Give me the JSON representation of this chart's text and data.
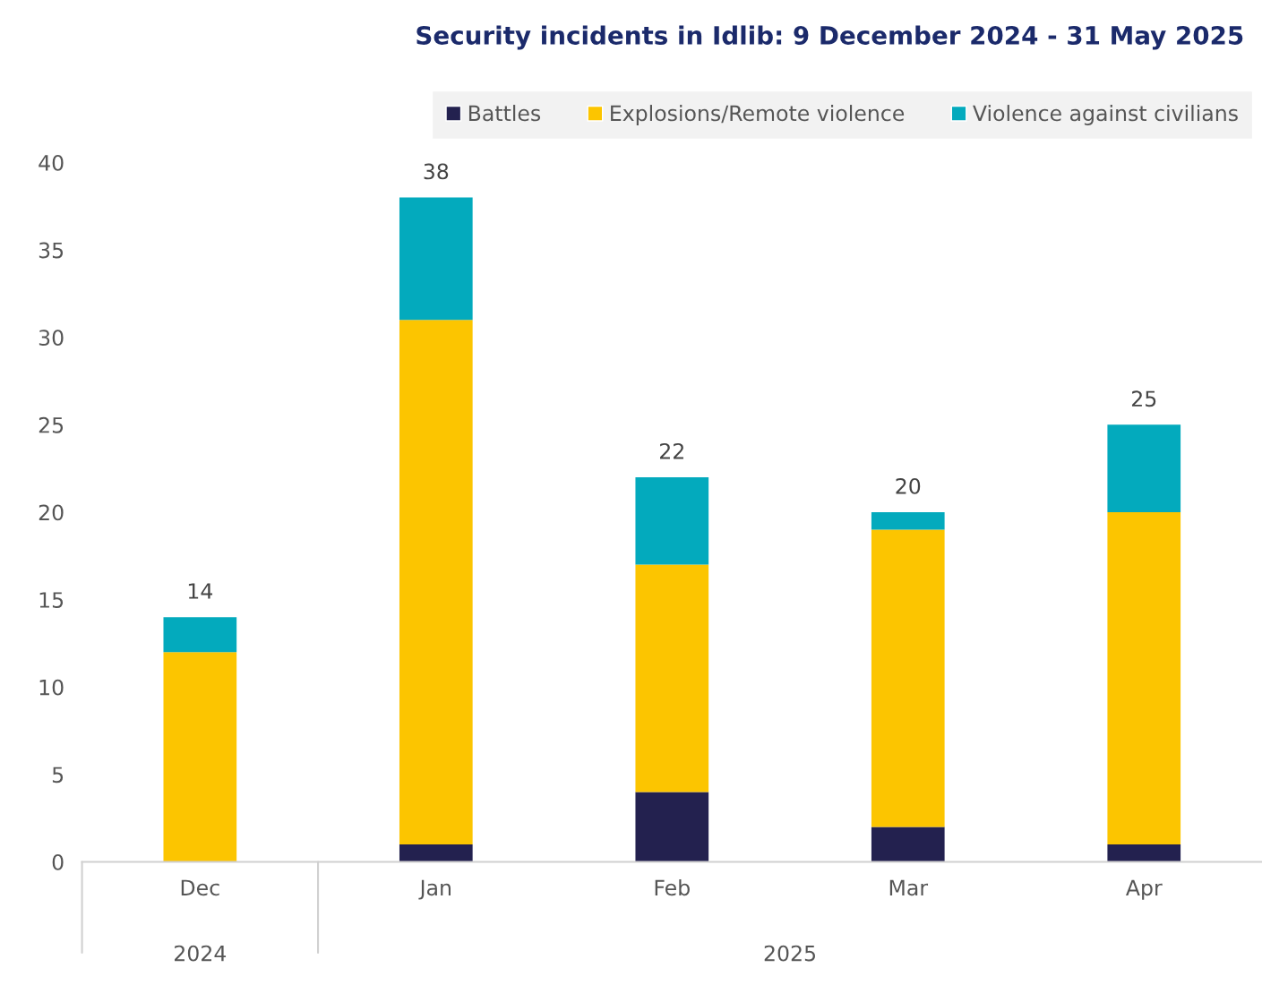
{
  "chart_data": {
    "type": "bar",
    "title": "Security incidents in Idlib: 9 December 2024 - 31 May 2025",
    "categories": [
      "Dec",
      "Jan",
      "Feb",
      "Mar",
      "Apr"
    ],
    "stacked": true,
    "series": [
      {
        "name": "Battles",
        "color": "#23214f",
        "values": [
          0,
          1,
          4,
          2,
          1
        ]
      },
      {
        "name": "Explosions/Remote violence",
        "color": "#fcc500",
        "values": [
          12,
          30,
          13,
          17,
          19
        ]
      },
      {
        "name": "Violence against civilians",
        "color": "#03aabd",
        "values": [
          2,
          7,
          5,
          1,
          5
        ]
      }
    ],
    "totals": [
      "14",
      "38",
      "22",
      "20",
      "25"
    ],
    "annotations": [
      "2024",
      "2025"
    ],
    "ylim": [
      0,
      40
    ],
    "yticks": [
      0,
      5,
      10,
      15,
      20,
      25,
      30,
      35,
      40
    ],
    "legend": "top",
    "grid": false
  }
}
